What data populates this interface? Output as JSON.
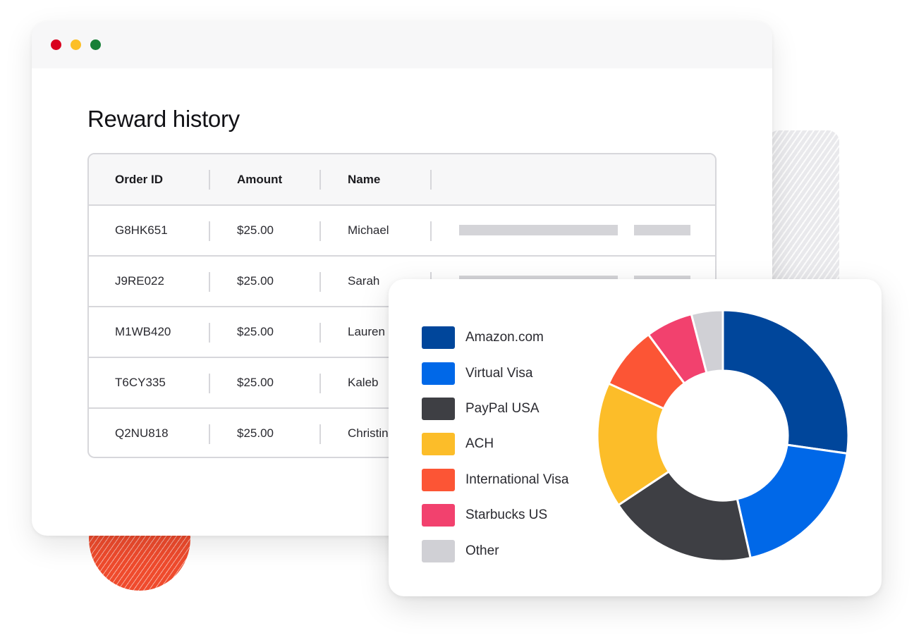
{
  "window": {
    "controls": [
      "close",
      "minimize",
      "maximize"
    ],
    "title": "Reward history"
  },
  "table": {
    "columns": [
      "Order ID",
      "Amount",
      "Name"
    ],
    "rows": [
      {
        "order_id": "G8HK651",
        "amount": "$25.00",
        "name": "Michael"
      },
      {
        "order_id": "J9RE022",
        "amount": "$25.00",
        "name": "Sarah"
      },
      {
        "order_id": "M1WB420",
        "amount": "$25.00",
        "name": "Lauren"
      },
      {
        "order_id": "T6CY335",
        "amount": "$25.00",
        "name": "Kaleb"
      },
      {
        "order_id": "Q2NU818",
        "amount": "$25.00",
        "name": "Christina"
      }
    ]
  },
  "colors": {
    "close": "#d9001e",
    "minimize": "#fcbf26",
    "maximize": "#188038"
  },
  "chart_data": {
    "type": "pie",
    "categories": [
      "Amazon.com",
      "Virtual Visa",
      "PayPal USA",
      "ACH",
      "International Visa",
      "Starbucks US",
      "Other"
    ],
    "values": [
      27,
      19,
      19,
      16,
      8,
      6,
      4
    ],
    "colors": [
      "#00469b",
      "#0068e8",
      "#3e3f44",
      "#fcbd29",
      "#fc5535",
      "#f2416e",
      "#d0d0d5"
    ],
    "legend_position": "left"
  }
}
